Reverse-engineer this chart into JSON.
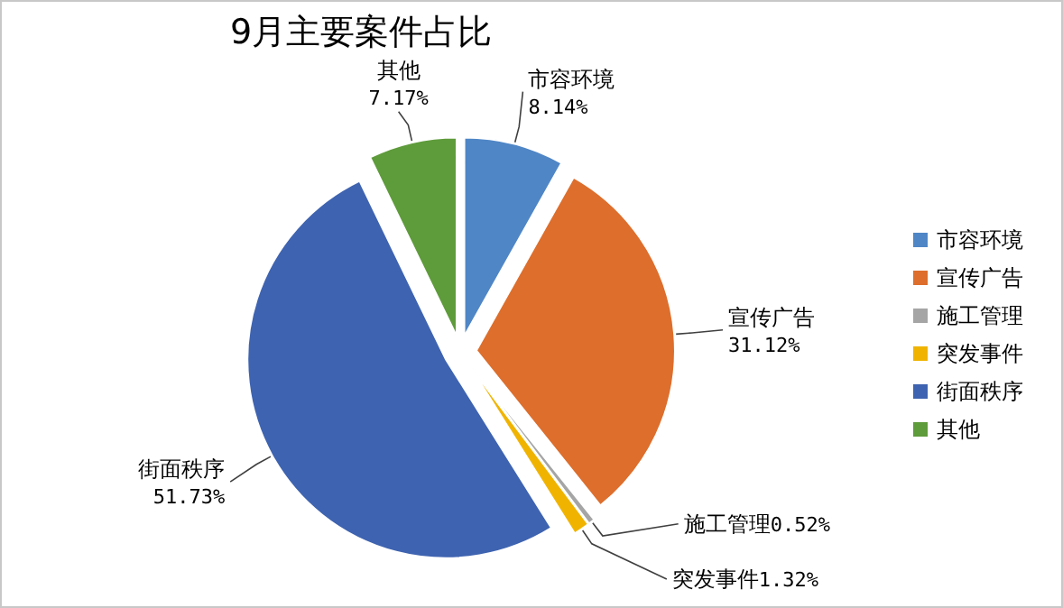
{
  "chart_data": {
    "type": "pie",
    "title": "9月主要案件占比",
    "categories": [
      "市容环境",
      "宣传广告",
      "施工管理",
      "突发事件",
      "街面秩序",
      "其他"
    ],
    "values": [
      8.14,
      31.12,
      0.52,
      1.32,
      51.73,
      7.17
    ],
    "value_labels": [
      "8.14%",
      "31.12%",
      "0.52%",
      "1.32%",
      "51.73%",
      "7.17%"
    ],
    "colors": [
      "#4f86c6",
      "#dd6e2c",
      "#a5a5a5",
      "#f0b400",
      "#3e63b0",
      "#5e9b3b"
    ],
    "legend": "right"
  }
}
